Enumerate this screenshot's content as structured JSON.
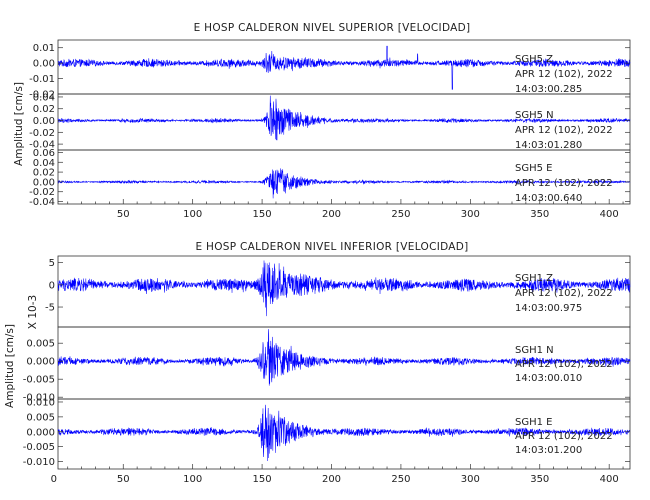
{
  "chart_data": [
    {
      "type": "line",
      "title": "E HOSP CALDERON NIVEL SUPERIOR [VELOCIDAD]",
      "ylabel": "Amplitud [cm/s]",
      "xlabel": "",
      "xlim": [
        3,
        415
      ],
      "xticks": [
        50,
        100,
        150,
        200,
        250,
        300,
        350,
        400
      ],
      "series_color": "#0000ff",
      "traces": [
        {
          "ylim": [
            -0.02,
            0.015
          ],
          "yticks": [
            0.01,
            0.0,
            -0.01,
            -0.02
          ],
          "ytick_labels": [
            "0.01",
            "0.00",
            "-0.01",
            "-0.02"
          ],
          "annotation": [
            "SGH5   Z",
            "APR 12 (102), 2022",
            "14:03:00.285"
          ],
          "signal": {
            "noise_amp": 0.0028,
            "burst_center": 155,
            "burst_amp": 0.006,
            "spikes": [
              [
                240,
                0.011
              ],
              [
                287,
                -0.017
              ],
              [
                262,
                0.006
              ]
            ]
          }
        },
        {
          "ylim": [
            -0.05,
            0.045
          ],
          "yticks": [
            0.04,
            0.02,
            0.0,
            -0.02,
            -0.04
          ],
          "ytick_labels": [
            "0.04",
            "0.02",
            "0.00",
            "-0.02",
            "-0.04"
          ],
          "annotation": [
            "SGH5   N",
            "APR 12 (102), 2022",
            "14:03:01.280"
          ],
          "signal": {
            "noise_amp": 0.0035,
            "burst_center": 158,
            "burst_amp": 0.04,
            "spikes": []
          }
        },
        {
          "ylim": [
            -0.045,
            0.065
          ],
          "yticks": [
            0.06,
            0.04,
            0.02,
            0.0,
            -0.02,
            -0.04
          ],
          "ytick_labels": [
            "0.06",
            "0.04",
            "0.02",
            "0.00",
            "-0.02",
            "-0.04"
          ],
          "annotation": [
            "SGH5   E",
            "APR 12 (102), 2022",
            "14:03:00.640"
          ],
          "signal": {
            "noise_amp": 0.003,
            "burst_center": 158,
            "burst_amp": 0.038,
            "spikes": []
          }
        }
      ]
    },
    {
      "type": "line",
      "title": "E HOSP CALDERON NIVEL INFERIOR [VELOCIDAD]",
      "ylabel": "Amplitud [cm/s]",
      "xlabel": "",
      "xlim": [
        3,
        415
      ],
      "xticks": [
        0,
        50,
        100,
        150,
        200,
        250,
        300,
        350,
        400
      ],
      "series_color": "#0000ff",
      "traces": [
        {
          "ylim": [
            -9.5,
            6.5
          ],
          "yticks": [
            5,
            0,
            -5
          ],
          "ytick_labels": [
            "5",
            "0",
            "-5"
          ],
          "scale_label": "X 10-3",
          "annotation": [
            "SGH1   Z",
            "APR 12 (102), 2022",
            "14:03:00.975"
          ],
          "signal": {
            "noise_amp": 1.6,
            "burst_center": 153,
            "burst_amp": 6.0,
            "spikes": []
          }
        },
        {
          "ylim": [
            -0.0105,
            0.0095
          ],
          "yticks": [
            0.005,
            0.0,
            -0.005,
            -0.01
          ],
          "ytick_labels": [
            "0.005",
            "0.000",
            "-0.005",
            "-0.010"
          ],
          "annotation": [
            "SGH1   N",
            "APR 12 (102), 2022",
            "14:03:00.010"
          ],
          "signal": {
            "noise_amp": 0.0012,
            "burst_center": 153,
            "burst_amp": 0.0075,
            "spikes": []
          }
        },
        {
          "ylim": [
            -0.0125,
            0.011
          ],
          "yticks": [
            0.01,
            0.005,
            0.0,
            -0.005,
            -0.01
          ],
          "ytick_labels": [
            "0.010",
            "0.005",
            "0.000",
            "-0.005",
            "-0.010"
          ],
          "annotation": [
            "SGH1   E",
            "APR 12 (102), 2022",
            "14:03:01.200"
          ],
          "signal": {
            "noise_amp": 0.0014,
            "burst_center": 153,
            "burst_amp": 0.0095,
            "spikes": []
          }
        }
      ]
    }
  ]
}
